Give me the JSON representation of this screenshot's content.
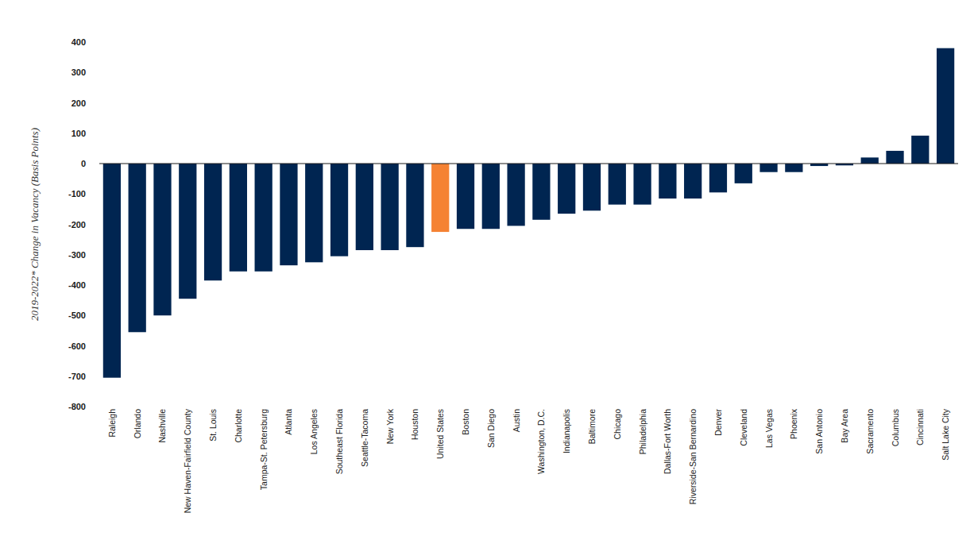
{
  "chart_data": {
    "type": "bar",
    "y_label": "2019-2022* Change in Vacancy (Basis Points)",
    "categories": [
      "Raleigh",
      "Orlando",
      "Nashville",
      "New Haven-Fairfield County",
      "St. Louis",
      "Charlotte",
      "Tampa-St. Petersburg",
      "Atlanta",
      "Los Angeles",
      "Southeast Florida",
      "Seattle-Tacoma",
      "New York",
      "Houston",
      "United States",
      "Boston",
      "San Diego",
      "Austin",
      "Washington, D.C.",
      "Indianapolis",
      "Baltimore",
      "Chicago",
      "Philadelphia",
      "Dallas-Fort Worth",
      "Riverside-San Bernardino",
      "Denver",
      "Cleveland",
      "Las Vegas",
      "Phoenix",
      "San Antonio",
      "Bay Area",
      "Sacramento",
      "Columbus",
      "Cincinnati",
      "Salt Lake City"
    ],
    "values": [
      -705,
      -555,
      -500,
      -445,
      -385,
      -355,
      -355,
      -335,
      -325,
      -305,
      -285,
      -285,
      -275,
      -225,
      -215,
      -215,
      -205,
      -185,
      -165,
      -155,
      -135,
      -135,
      -115,
      -115,
      -95,
      -65,
      -28,
      -28,
      -8,
      -6,
      20,
      42,
      92,
      380
    ],
    "colors": [
      "#002551",
      "#002551",
      "#002551",
      "#002551",
      "#002551",
      "#002551",
      "#002551",
      "#002551",
      "#002551",
      "#002551",
      "#002551",
      "#002551",
      "#002551",
      "#f58233",
      "#002551",
      "#002551",
      "#002551",
      "#002551",
      "#002551",
      "#002551",
      "#002551",
      "#002551",
      "#002551",
      "#002551",
      "#002551",
      "#002551",
      "#002551",
      "#002551",
      "#002551",
      "#002551",
      "#002551",
      "#002551",
      "#002551",
      "#002551"
    ],
    "ylim": [
      -800,
      400
    ],
    "yticks": [
      -800,
      -700,
      -600,
      -500,
      -400,
      -300,
      -200,
      -100,
      0,
      100,
      200,
      300,
      400
    ],
    "grid": false
  }
}
